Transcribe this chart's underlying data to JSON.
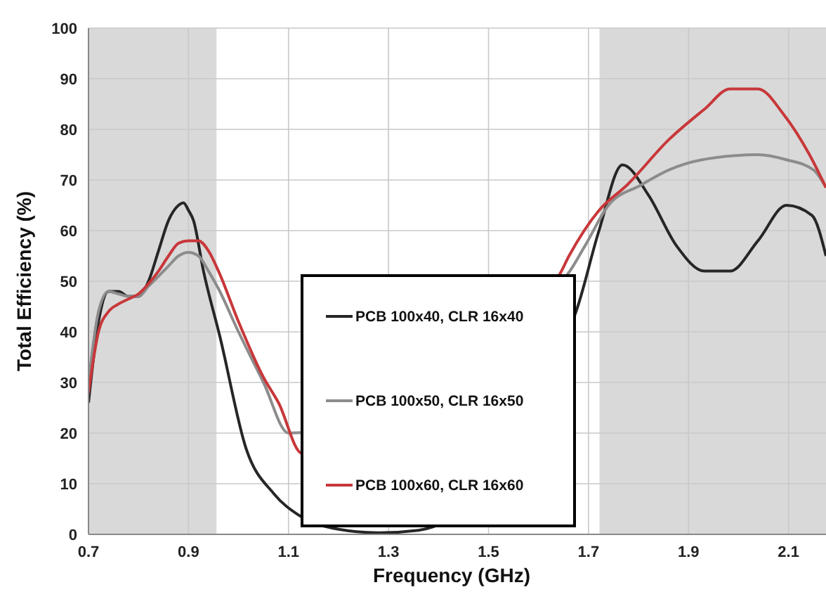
{
  "chart_data": {
    "type": "line",
    "xlabel": "Frequency (GHz)",
    "ylabel": "Total Efficiency (%)",
    "xlim": [
      0.7,
      2.175
    ],
    "xticks": [
      0.7,
      0.9,
      1.1,
      1.3,
      1.5,
      1.7,
      1.9,
      2.1
    ],
    "ylim": [
      0,
      100
    ],
    "yticks": [
      0,
      10,
      20,
      30,
      40,
      50,
      60,
      70,
      80,
      90,
      100
    ],
    "grid": true,
    "legend": "bottom",
    "line_style": "solid",
    "marker": "none",
    "bands": [
      {
        "axis": "x",
        "from": 0.7,
        "to": 0.956,
        "color": "#d9d9d9"
      },
      {
        "axis": "x",
        "from": 1.722,
        "to": 2.175,
        "color": "#d9d9d9"
      }
    ],
    "series": [
      {
        "name": "PCB 100x40, CLR 16x40",
        "color": "#262626",
        "x": [
          0.7,
          0.72,
          0.74,
          0.76,
          0.78,
          0.8,
          0.82,
          0.84,
          0.86,
          0.88,
          0.89,
          0.9,
          0.91,
          0.93,
          0.963,
          1.015,
          1.071,
          1.122,
          1.2,
          1.28,
          1.36,
          1.675,
          1.721,
          1.768,
          1.82,
          1.876,
          1.932,
          1.983,
          2.039,
          2.096,
          2.147,
          2.175
        ],
        "values": [
          26,
          42,
          48,
          48,
          47,
          47,
          50,
          56,
          62,
          65,
          65.5,
          64,
          62,
          52,
          39,
          17,
          8,
          3.7,
          1,
          0.3,
          0.8,
          44,
          60,
          73,
          67,
          57,
          52,
          52,
          58,
          65,
          63,
          55
        ]
      },
      {
        "name": "PCB 100x50, CLR 16x50",
        "color": "#8c8c8c",
        "x": [
          0.7,
          0.72,
          0.74,
          0.76,
          0.78,
          0.8,
          0.82,
          0.84,
          0.86,
          0.88,
          0.9,
          0.92,
          0.94,
          0.96,
          1.0,
          1.05,
          1.1,
          1.655,
          1.693,
          1.74,
          1.805,
          1.861,
          1.927,
          2.039,
          2.096,
          2.15,
          2.175
        ],
        "values": [
          30,
          44,
          48,
          47.5,
          47,
          47,
          49,
          51,
          53,
          55,
          55.7,
          55,
          52,
          48.5,
          40,
          30,
          20,
          51,
          57,
          65,
          69,
          72,
          74,
          75,
          74,
          72,
          68.5
        ]
      },
      {
        "name": "PCB 100x60, CLR 16x60",
        "color": "#c8373a",
        "x": [
          0.7,
          0.72,
          0.74,
          0.76,
          0.78,
          0.8,
          0.82,
          0.84,
          0.86,
          0.88,
          0.9,
          0.92,
          0.94,
          0.96,
          1.0,
          1.05,
          1.08,
          1.127,
          1.64,
          1.661,
          1.721,
          1.777,
          1.861,
          1.932,
          1.983,
          2.039,
          2.09,
          2.142,
          2.175
        ],
        "values": [
          28,
          40,
          44,
          45.5,
          46.5,
          47.5,
          49.5,
          52,
          55,
          57.5,
          58,
          58,
          56,
          52,
          42,
          31,
          26,
          16,
          51,
          55,
          64,
          69,
          78,
          84,
          88,
          88,
          83,
          75,
          68.5
        ]
      }
    ]
  }
}
